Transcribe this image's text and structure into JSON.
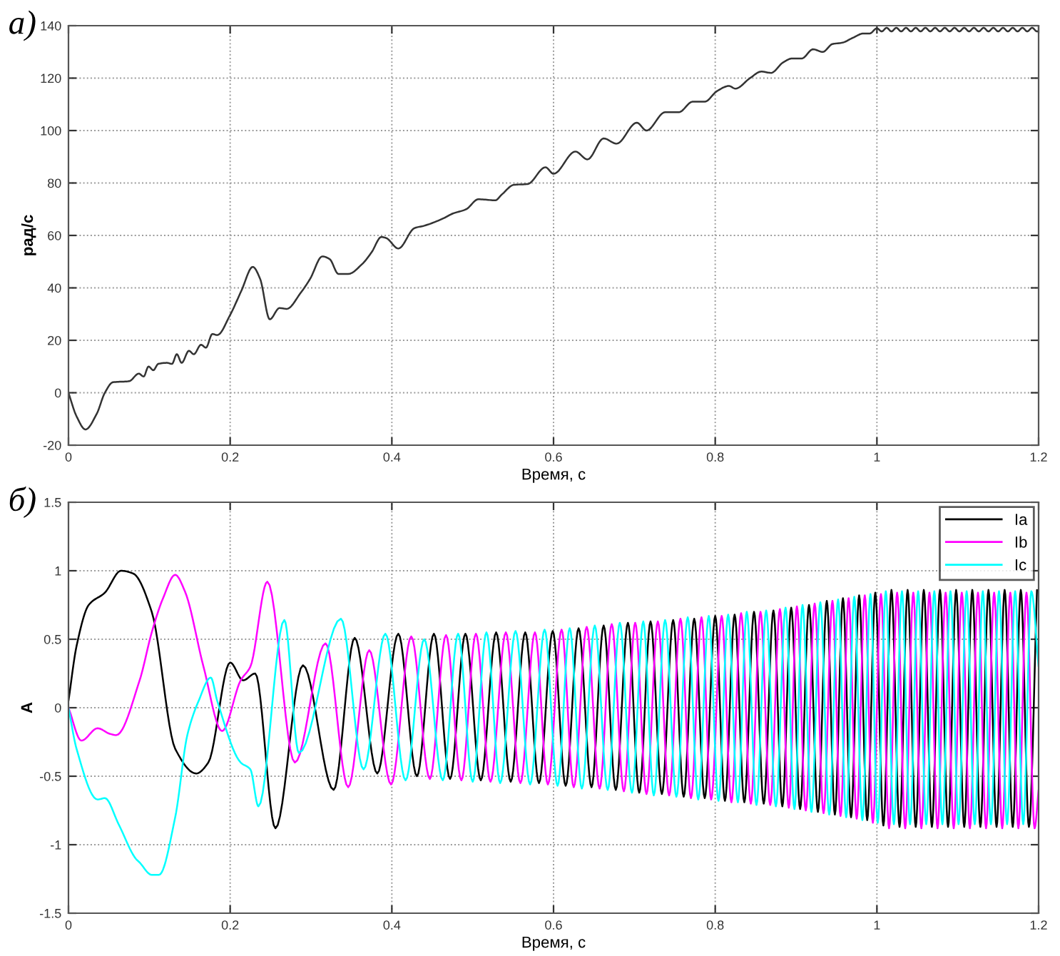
{
  "chart_data": [
    {
      "type": "line",
      "xlabel": "Время, с",
      "ylabel": "рад/с",
      "annotations": [
        "а)"
      ],
      "xlim": [
        0,
        1.2
      ],
      "ylim": [
        -20,
        140
      ],
      "xticks": [
        0,
        0.2,
        0.4,
        0.6,
        0.8,
        1,
        1.2
      ],
      "yticks": [
        -20,
        0,
        20,
        40,
        60,
        80,
        100,
        120,
        140
      ],
      "grid": true,
      "legend": false,
      "line_style": "solid",
      "marker": "none",
      "series": [
        {
          "color": "#333333",
          "x": [
            0,
            0.01,
            0.021,
            0.035,
            0.045,
            0.055,
            0.075,
            0.087,
            0.093,
            0.099,
            0.105,
            0.111,
            0.122,
            0.128,
            0.134,
            0.14,
            0.149,
            0.155,
            0.164,
            0.17,
            0.178,
            0.184,
            0.2,
            0.214,
            0.228,
            0.237,
            0.249,
            0.261,
            0.27,
            0.287,
            0.299,
            0.314,
            0.323,
            0.334,
            0.346,
            0.363,
            0.375,
            0.387,
            0.393,
            0.408,
            0.428,
            0.44,
            0.463,
            0.475,
            0.492,
            0.507,
            0.528,
            0.536,
            0.551,
            0.568,
            0.59,
            0.6,
            0.627,
            0.642,
            0.662,
            0.678,
            0.703,
            0.715,
            0.738,
            0.755,
            0.772,
            0.787,
            0.802,
            0.817,
            0.825,
            0.843,
            0.857,
            0.869,
            0.884,
            0.895,
            0.907,
            0.921,
            0.933,
            0.945,
            0.957,
            0.971,
            0.983,
            0.991,
            1.0,
            1.006,
            1.012,
            1.018,
            1.024,
            1.03,
            1.036,
            1.042,
            1.048,
            1.054,
            1.06,
            1.066,
            1.072,
            1.078,
            1.084,
            1.09,
            1.096,
            1.102,
            1.108,
            1.114,
            1.12,
            1.126,
            1.132,
            1.138,
            1.144,
            1.15,
            1.156,
            1.162,
            1.168,
            1.174,
            1.18,
            1.186,
            1.192,
            1.198,
            1.2
          ],
          "values": [
            0,
            -9,
            -14,
            -8,
            0,
            4,
            4.4,
            7.3,
            6.2,
            10,
            8.6,
            11,
            11.4,
            11,
            14.7,
            11.4,
            16,
            14.7,
            18.3,
            17.2,
            22.4,
            22,
            29.7,
            39,
            48,
            43.5,
            28,
            32.3,
            32,
            38,
            43.5,
            52,
            51,
            45.3,
            45.3,
            49,
            53.6,
            59.4,
            59,
            55,
            62.8,
            63.7,
            66.4,
            68.3,
            70,
            73.8,
            73.4,
            75.6,
            79.3,
            79.6,
            86,
            83.5,
            92,
            89,
            97,
            95,
            103,
            100,
            107,
            107,
            111,
            111,
            115,
            117,
            116,
            120,
            122.5,
            122,
            126,
            127.5,
            127.5,
            131,
            130,
            133,
            133.5,
            135.5,
            137,
            137,
            139,
            137.8,
            139.2,
            137.8,
            139.2,
            137.8,
            139.2,
            137.8,
            139.2,
            137.8,
            139.2,
            137.8,
            139.2,
            137.8,
            139.2,
            137.8,
            139.2,
            137.8,
            139.2,
            137.8,
            139.2,
            137.8,
            139.2,
            137.8,
            139.2,
            137.8,
            139.2,
            137.8,
            139.2,
            137.8,
            139.2,
            137.8,
            139.2,
            137.8,
            138.0
          ]
        }
      ]
    },
    {
      "type": "line",
      "xlabel": "Время, с",
      "ylabel": "А",
      "annotations": [
        "б)"
      ],
      "xlim": [
        0,
        1.2
      ],
      "ylim": [
        -1.5,
        1.5
      ],
      "xticks": [
        0,
        0.2,
        0.4,
        0.6,
        0.8,
        1,
        1.2
      ],
      "yticks": [
        -1.5,
        -1,
        -0.5,
        0,
        0.5,
        1,
        1.5
      ],
      "grid": true,
      "legend": "top right",
      "line_style": "solid",
      "marker": "none",
      "series": [
        {
          "name": "Ia",
          "color": "#000000",
          "x": [
            0,
            0.01,
            0.025,
            0.045,
            0.065,
            0.08,
            0.103,
            0.132,
            0.158,
            0.173,
            0.2,
            0.216,
            0.231,
            0.256,
            0.29,
            0.328,
            0.354,
            0.382,
            0.408,
            0.431,
            0.452,
            0.472,
            0.491,
            0.51,
            0.529,
            0.547,
            0.565,
            0.582,
            0.599,
            0.615,
            0.631,
            0.647,
            0.662,
            0.677,
            0.692,
            0.706,
            0.72,
            0.734,
            0.748,
            0.761,
            0.774,
            0.787,
            0.8,
            0.812,
            0.824,
            0.836,
            0.848,
            0.86,
            0.872,
            0.883,
            0.894,
            0.905,
            0.916,
            0.927,
            0.938,
            0.948,
            0.958,
            0.968,
            0.978,
            0.988,
            0.998,
            1.008,
            1.018,
            1.028,
            1.038,
            1.048,
            1.058,
            1.068,
            1.078,
            1.088,
            1.098,
            1.108,
            1.118,
            1.128,
            1.138,
            1.148,
            1.158,
            1.168,
            1.178,
            1.188,
            1.198
          ],
          "values": [
            0.05,
            0.45,
            0.75,
            0.84,
            1.0,
            0.98,
            0.7,
            -0.3,
            -0.48,
            -0.4,
            0.33,
            0.2,
            0.25,
            -0.88,
            0.31,
            -0.6,
            0.51,
            -0.48,
            0.54,
            -0.5,
            0.54,
            -0.52,
            0.54,
            -0.53,
            0.55,
            -0.54,
            0.55,
            -0.55,
            0.56,
            -0.57,
            0.58,
            -0.58,
            0.6,
            -0.6,
            0.62,
            -0.62,
            0.63,
            -0.63,
            0.64,
            -0.65,
            0.65,
            -0.66,
            0.67,
            -0.68,
            0.68,
            -0.69,
            0.7,
            -0.7,
            0.71,
            -0.72,
            0.73,
            -0.74,
            0.75,
            -0.76,
            0.78,
            -0.78,
            0.8,
            -0.8,
            0.82,
            -0.82,
            0.84,
            -0.86,
            0.86,
            -0.87,
            0.86,
            -0.87,
            0.86,
            -0.87,
            0.86,
            -0.87,
            0.86,
            -0.87,
            0.86,
            -0.87,
            0.86,
            -0.87,
            0.86,
            -0.87,
            0.86,
            -0.87,
            0.86
          ]
        },
        {
          "name": "Ib",
          "color": "#ff00ff",
          "x": [
            0,
            0.016,
            0.036,
            0.051,
            0.059,
            0.088,
            0.103,
            0.117,
            0.132,
            0.144,
            0.167,
            0.19,
            0.213,
            0.225,
            0.246,
            0.28,
            0.318,
            0.346,
            0.372,
            0.399,
            0.424,
            0.447,
            0.467,
            0.486,
            0.504,
            0.522,
            0.541,
            0.559,
            0.577,
            0.593,
            0.61,
            0.625,
            0.641,
            0.657,
            0.672,
            0.687,
            0.701,
            0.715,
            0.729,
            0.743,
            0.757,
            0.77,
            0.783,
            0.795,
            0.808,
            0.82,
            0.832,
            0.844,
            0.856,
            0.868,
            0.88,
            0.891,
            0.901,
            0.912,
            0.923,
            0.934,
            0.945,
            0.955,
            0.965,
            0.975,
            0.985,
            0.995,
            1.005,
            1.015,
            1.025,
            1.035,
            1.045,
            1.055,
            1.065,
            1.075,
            1.085,
            1.095,
            1.105,
            1.115,
            1.125,
            1.135,
            1.145,
            1.155,
            1.165,
            1.175,
            1.185,
            1.195,
            1.2
          ],
          "values": [
            0,
            -0.24,
            -0.15,
            -0.19,
            -0.2,
            0.2,
            0.55,
            0.8,
            0.97,
            0.85,
            0.3,
            -0.17,
            0.2,
            0.3,
            0.92,
            -0.4,
            0.47,
            -0.58,
            0.42,
            -0.56,
            0.52,
            -0.52,
            0.53,
            -0.53,
            0.54,
            -0.54,
            0.55,
            -0.55,
            0.55,
            -0.56,
            0.57,
            -0.58,
            0.59,
            -0.59,
            0.61,
            -0.61,
            0.62,
            -0.63,
            0.63,
            -0.64,
            0.65,
            -0.66,
            0.66,
            -0.67,
            0.67,
            -0.69,
            0.69,
            -0.7,
            0.7,
            -0.71,
            0.72,
            -0.73,
            0.74,
            -0.75,
            0.76,
            -0.77,
            0.78,
            -0.79,
            0.8,
            -0.81,
            0.82,
            -0.84,
            0.83,
            -0.88,
            0.84,
            -0.88,
            0.84,
            -0.88,
            0.84,
            -0.88,
            0.84,
            -0.88,
            0.84,
            -0.88,
            0.84,
            -0.88,
            0.84,
            -0.88,
            0.84,
            -0.88,
            0.84,
            -0.88,
            -0.6
          ]
        },
        {
          "name": "Ic",
          "color": "#00ffff",
          "x": [
            0,
            0.01,
            0.036,
            0.045,
            0.062,
            0.083,
            0.088,
            0.103,
            0.112,
            0.132,
            0.147,
            0.161,
            0.176,
            0.184,
            0.213,
            0.225,
            0.235,
            0.267,
            0.285,
            0.337,
            0.365,
            0.392,
            0.417,
            0.44,
            0.463,
            0.482,
            0.5,
            0.517,
            0.534,
            0.553,
            0.571,
            0.589,
            0.605,
            0.62,
            0.635,
            0.651,
            0.667,
            0.682,
            0.697,
            0.711,
            0.724,
            0.738,
            0.752,
            0.766,
            0.779,
            0.792,
            0.804,
            0.816,
            0.828,
            0.839,
            0.851,
            0.863,
            0.875,
            0.887,
            0.898,
            0.908,
            0.919,
            0.93,
            0.941,
            0.952,
            0.962,
            0.972,
            0.982,
            0.992,
            1.001,
            1.011,
            1.021,
            1.031,
            1.041,
            1.051,
            1.061,
            1.071,
            1.081,
            1.091,
            1.101,
            1.111,
            1.121,
            1.131,
            1.141,
            1.151,
            1.161,
            1.171,
            1.181,
            1.191,
            1.2
          ],
          "values": [
            0,
            -0.3,
            -0.67,
            -0.66,
            -0.85,
            -1.1,
            -1.13,
            -1.22,
            -1.22,
            -0.8,
            -0.2,
            0.05,
            0.22,
            0.05,
            -0.4,
            -0.45,
            -0.72,
            0.64,
            -0.33,
            0.65,
            -0.45,
            0.54,
            -0.53,
            0.5,
            -0.53,
            0.54,
            -0.54,
            0.55,
            -0.55,
            0.56,
            -0.56,
            0.57,
            -0.57,
            0.58,
            -0.59,
            0.6,
            -0.6,
            0.62,
            -0.62,
            0.63,
            -0.64,
            0.64,
            -0.65,
            0.66,
            -0.67,
            0.67,
            -0.68,
            0.68,
            -0.69,
            0.7,
            -0.71,
            0.71,
            -0.72,
            0.73,
            -0.74,
            0.75,
            -0.76,
            0.77,
            -0.78,
            0.79,
            -0.8,
            0.81,
            -0.82,
            0.83,
            -0.84,
            0.85,
            -0.85,
            0.85,
            -0.85,
            0.85,
            -0.85,
            0.85,
            -0.85,
            0.85,
            -0.85,
            0.85,
            -0.85,
            0.85,
            -0.85,
            0.85,
            -0.85,
            0.85,
            -0.85,
            0.85,
            0.3
          ]
        }
      ]
    }
  ]
}
